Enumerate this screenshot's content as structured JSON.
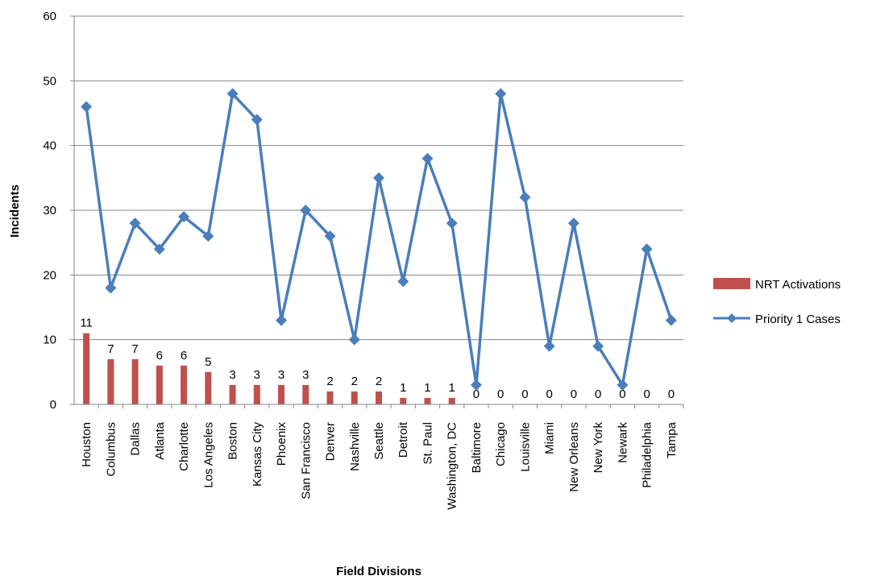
{
  "chart_data": {
    "type": "bar+line",
    "xlabel": "Field Divisions",
    "ylabel": "Incidents",
    "ylim": [
      0,
      60
    ],
    "yticks": [
      0,
      10,
      20,
      30,
      40,
      50,
      60
    ],
    "grid": true,
    "legend_position": "right",
    "categories": [
      "Houston",
      "Columbus",
      "Dallas",
      "Atlanta",
      "Charlotte",
      "Los Angeles",
      "Boston",
      "Kansas City",
      "Phoenix",
      "San Francisco",
      "Denver",
      "Nashville",
      "Seattle",
      "Detroit",
      "St. Paul",
      "Washington, DC",
      "Baltimore",
      "Chicago",
      "Louisville",
      "Miami",
      "New Orleans",
      "New York",
      "Newark",
      "Philadelphia",
      "Tampa"
    ],
    "series": [
      {
        "name": "NRT Activations",
        "type": "bar",
        "color": "#C0504D",
        "values": [
          11,
          7,
          7,
          6,
          6,
          5,
          3,
          3,
          3,
          3,
          2,
          2,
          2,
          1,
          1,
          1,
          0,
          0,
          0,
          0,
          0,
          0,
          0,
          0,
          0
        ]
      },
      {
        "name": "Priority 1 Cases",
        "type": "line",
        "color": "#4A7EBB",
        "marker": "diamond",
        "values": [
          46,
          18,
          28,
          24,
          29,
          26,
          48,
          44,
          13,
          30,
          26,
          10,
          35,
          19,
          38,
          28,
          3,
          48,
          32,
          9,
          28,
          9,
          3,
          24,
          13
        ]
      }
    ]
  }
}
